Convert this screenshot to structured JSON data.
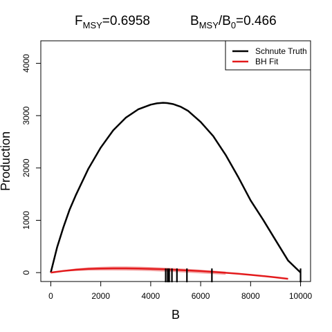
{
  "title": {
    "fmsy_label": "F",
    "fmsy_sub": "MSY",
    "fmsy_value": "=0.6958",
    "bmsy_label": "B",
    "bmsy_sub": "MSY",
    "bmsy_sep": "/B",
    "b0_sub": "0",
    "bmsy_value": "=0.466"
  },
  "chart_data": {
    "type": "line",
    "xlabel": "B",
    "ylabel": "Production",
    "xlim": [
      -400,
      10400
    ],
    "ylim": [
      -170,
      4430
    ],
    "x_ticks": [
      0,
      2000,
      4000,
      6000,
      8000,
      10000
    ],
    "x_tick_labels": [
      "0",
      "2000",
      "4000",
      "6000",
      "8000",
      "10000"
    ],
    "y_ticks": [
      0,
      1000,
      2000,
      3000,
      4000
    ],
    "y_tick_labels": [
      "0",
      "1000",
      "2000",
      "3000",
      "4000"
    ],
    "grid": false,
    "legend_position": "top-right",
    "series": [
      {
        "name": "Schnute Truth",
        "color": "#000000",
        "x": [
          0,
          250,
          500,
          750,
          1000,
          1500,
          2000,
          2500,
          3000,
          3500,
          4000,
          4250,
          4500,
          4660,
          4900,
          5200,
          5500,
          6000,
          6500,
          7000,
          7500,
          8000,
          8500,
          9000,
          9500,
          10000
        ],
        "y": [
          0,
          480,
          860,
          1200,
          1480,
          1980,
          2390,
          2720,
          2960,
          3120,
          3210,
          3235,
          3245,
          3240,
          3220,
          3170,
          3090,
          2880,
          2610,
          2250,
          1830,
          1380,
          1010,
          620,
          230,
          0
        ]
      },
      {
        "name": "BH Fit",
        "color": "#e31a1c",
        "x": [
          0,
          500,
          1000,
          1500,
          2000,
          2500,
          3000,
          3500,
          4000,
          4500,
          5000,
          5500,
          6000,
          6500,
          7000,
          7500,
          8000,
          8500,
          9000,
          9500
        ],
        "y": [
          0,
          32,
          55,
          70,
          78,
          81,
          81,
          78,
          72,
          64,
          54,
          42,
          29,
          14,
          -3,
          -22,
          -43,
          -66,
          -91,
          -118
        ]
      }
    ],
    "ci_band": {
      "color": "#f4a6a6",
      "x": [
        0,
        500,
        1000,
        1500,
        2000,
        2500,
        3000,
        3500,
        4000,
        4500,
        5000,
        5500,
        6000,
        6500,
        7000
      ],
      "upper": [
        0,
        45,
        80,
        100,
        112,
        118,
        118,
        114,
        106,
        96,
        84,
        70,
        55,
        38,
        20
      ],
      "lower": [
        0,
        20,
        32,
        38,
        42,
        42,
        40,
        36,
        30,
        20,
        10,
        -2,
        -14,
        -28,
        -40
      ]
    },
    "rug_x": [
      4600,
      4680,
      4740,
      4850,
      5050,
      5450,
      6450,
      10000
    ]
  }
}
